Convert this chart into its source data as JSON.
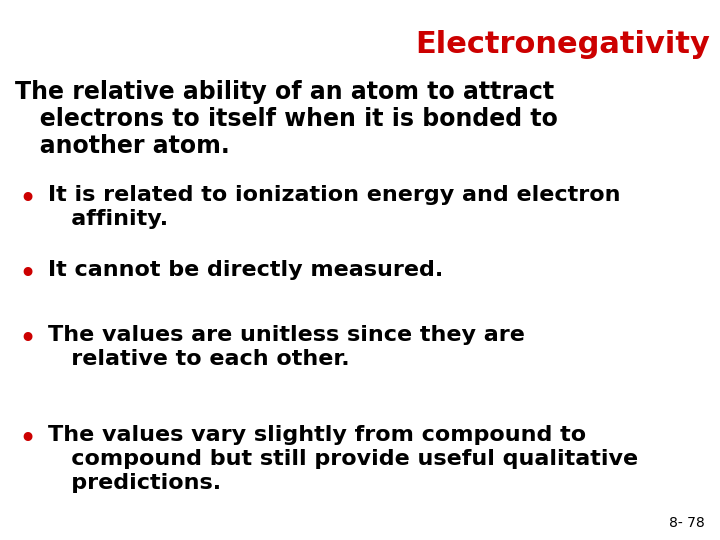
{
  "title": "Electronegativity",
  "title_color": "#CC0000",
  "title_fontsize": 22,
  "title_weight": "bold",
  "background_color": "#FFFFFF",
  "text_color": "#000000",
  "bullet_color": "#CC0000",
  "intro_lines": [
    "The relative ability of an atom to attract",
    "   electrons to itself when it is bonded to",
    "   another atom."
  ],
  "intro_fontsize": 17,
  "intro_weight": "bold",
  "bullets": [
    [
      "It is related to ionization energy and electron",
      "   affinity."
    ],
    [
      "It cannot be directly measured."
    ],
    [
      "The values are unitless since they are",
      "   relative to each other."
    ],
    [
      "The values vary slightly from compound to",
      "   compound but still provide useful qualitative",
      "   predictions."
    ]
  ],
  "bullet_fontsize": 16,
  "bullet_weight": "bold",
  "footer": "8- 78",
  "footer_fontsize": 10
}
